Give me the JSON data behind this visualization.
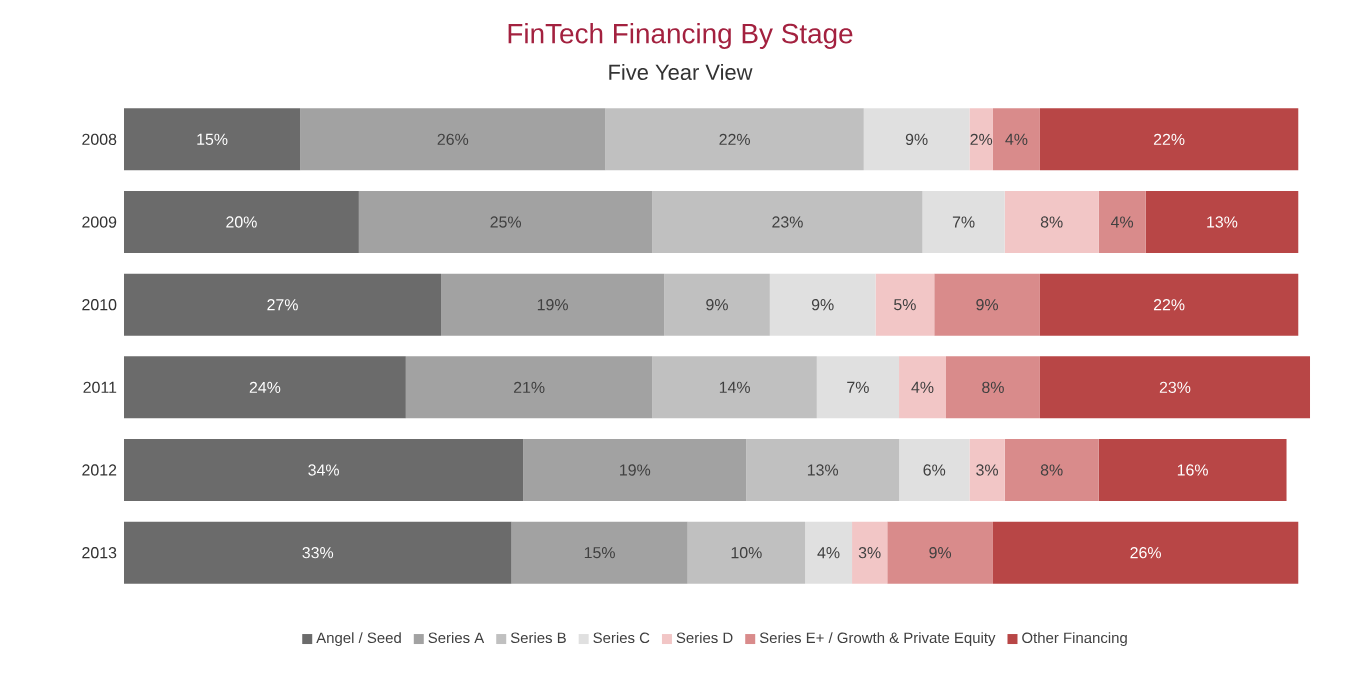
{
  "chart_data": {
    "type": "bar",
    "title": "FinTech Financing By Stage",
    "subtitle": "Five Year View",
    "stacked": true,
    "orientation": "horizontal",
    "legend": "bottom",
    "categories": [
      "2008",
      "2009",
      "2010",
      "2011",
      "2012",
      "2013"
    ],
    "series": [
      {
        "name": "Angel / Seed",
        "color": "#6b6b6b",
        "values": [
          15,
          20,
          27,
          24,
          34,
          33
        ],
        "value_labels": [
          "15%",
          "20%",
          "27%",
          "24%",
          "34%",
          "33%"
        ]
      },
      {
        "name": "Series A",
        "color": "#a2a2a2",
        "values": [
          26,
          25,
          19,
          21,
          19,
          15
        ],
        "value_labels": [
          "26%",
          "25%",
          "19%",
          "21%",
          "19%",
          "15%"
        ]
      },
      {
        "name": "Series B",
        "color": "#c0c0c0",
        "values": [
          22,
          23,
          9,
          14,
          13,
          10
        ],
        "value_labels": [
          "22%",
          "23%",
          "9%",
          "14%",
          "13%",
          "10%"
        ]
      },
      {
        "name": "Series C",
        "color": "#e0e0e0",
        "values": [
          9,
          7,
          9,
          7,
          6,
          4
        ],
        "value_labels": [
          "9%",
          "7%",
          "9%",
          "7%",
          "6%",
          "4%"
        ]
      },
      {
        "name": "Series D",
        "color": "#f2c6c6",
        "values": [
          2,
          8,
          5,
          4,
          3,
          3
        ],
        "value_labels": [
          "2%",
          "8%",
          "5%",
          "4%",
          "3%",
          "3%"
        ]
      },
      {
        "name": "Series E+ / Growth & Private Equity",
        "color": "#d98b8b",
        "values": [
          4,
          4,
          9,
          8,
          8,
          9
        ],
        "value_labels": [
          "4%",
          "4%",
          "9%",
          "8%",
          "8%",
          "9%"
        ]
      },
      {
        "name": "Other Financing",
        "color": "#b84646",
        "values": [
          22,
          13,
          22,
          23,
          16,
          26
        ],
        "value_labels": [
          "22%",
          "13%",
          "22%",
          "23%",
          "16%",
          "26%"
        ]
      }
    ]
  }
}
